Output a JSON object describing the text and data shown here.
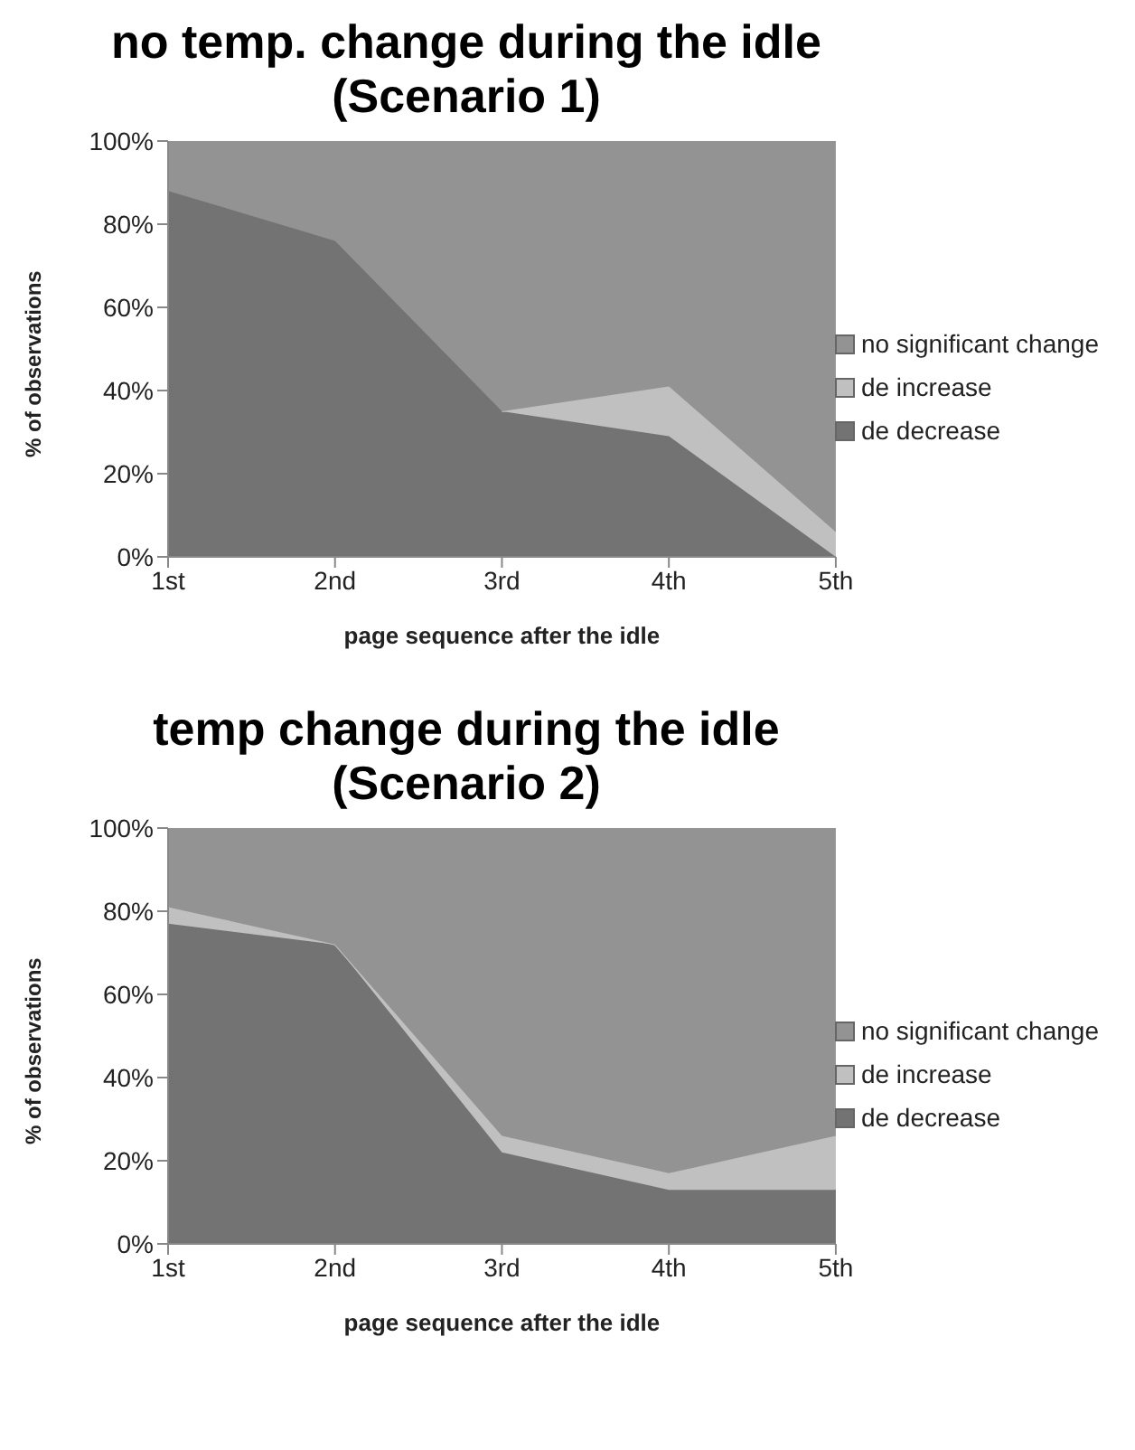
{
  "chart_data": [
    {
      "type": "area",
      "title": "no temp. change during the idle (Scenario 1)",
      "xlabel": "page sequence after the idle",
      "ylabel": "% of observations",
      "categories": [
        "1st",
        "2nd",
        "3rd",
        "4th",
        "5th"
      ],
      "stacked": true,
      "legend": "right",
      "ylim": [
        0,
        100
      ],
      "yticks": [
        {
          "value": 0,
          "label": "0%"
        },
        {
          "value": 20,
          "label": "20%"
        },
        {
          "value": 40,
          "label": "40%"
        },
        {
          "value": 60,
          "label": "60%"
        },
        {
          "value": 80,
          "label": "80%"
        },
        {
          "value": 100,
          "label": "100%"
        }
      ],
      "series": [
        {
          "name": "de decrease",
          "color": "#737373",
          "values": [
            88,
            76,
            35,
            29,
            0
          ]
        },
        {
          "name": "de increase",
          "color": "#c0c0c0",
          "values": [
            null,
            null,
            0,
            12,
            6
          ]
        },
        {
          "name": "no significant change",
          "color": "#939393",
          "values": [
            12,
            24,
            65,
            59,
            94
          ]
        }
      ]
    },
    {
      "type": "area",
      "title": "temp change during the idle (Scenario 2)",
      "xlabel": "page sequence after the idle",
      "ylabel": "% of observations",
      "categories": [
        "1st",
        "2nd",
        "3rd",
        "4th",
        "5th"
      ],
      "stacked": true,
      "legend": "right",
      "ylim": [
        0,
        100
      ],
      "yticks": [
        {
          "value": 0,
          "label": "0%"
        },
        {
          "value": 20,
          "label": "20%"
        },
        {
          "value": 40,
          "label": "40%"
        },
        {
          "value": 60,
          "label": "60%"
        },
        {
          "value": 80,
          "label": "80%"
        },
        {
          "value": 100,
          "label": "100%"
        }
      ],
      "series": [
        {
          "name": "de decrease",
          "color": "#737373",
          "values": [
            77,
            72,
            22,
            13,
            13
          ]
        },
        {
          "name": "de increase",
          "color": "#c0c0c0",
          "values": [
            4,
            0,
            4,
            4,
            13
          ]
        },
        {
          "name": "no significant change",
          "color": "#939393",
          "values": [
            19,
            28,
            74,
            83,
            74
          ]
        }
      ]
    }
  ]
}
